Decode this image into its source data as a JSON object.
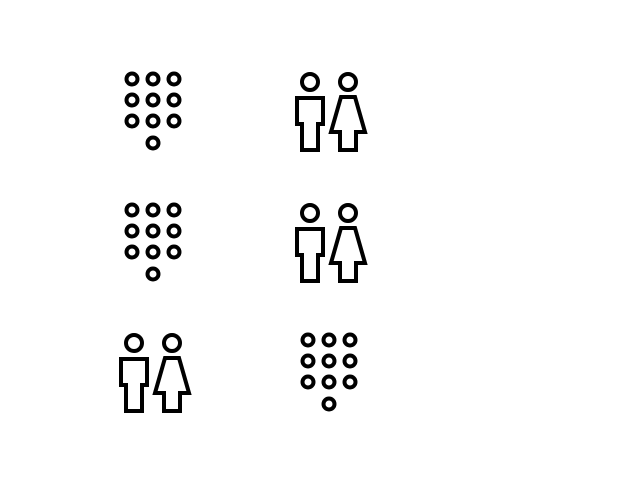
{
  "icons": [
    {
      "name": "keypad-icon"
    },
    {
      "name": "restroom-icon"
    },
    {
      "name": "keypad-icon"
    },
    {
      "name": "restroom-icon"
    },
    {
      "name": "restroom-icon"
    },
    {
      "name": "keypad-icon"
    }
  ],
  "colors": {
    "background": "#ffffff",
    "stroke": "#000000"
  }
}
